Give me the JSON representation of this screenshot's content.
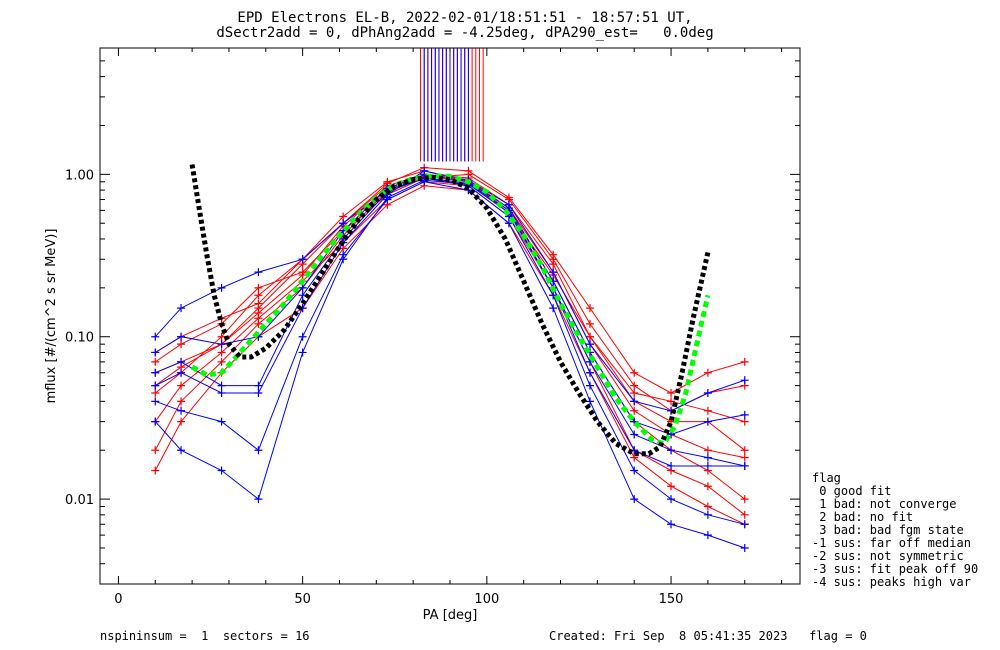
{
  "header": {
    "title_line1": "EPD Electrons EL-B, 2022-02-01/18:51:51 - 18:57:51 UT,",
    "title_line2": "dSectr2add = 0, dPhAng2add = -4.25deg, dPA290_est=   0.0deg"
  },
  "footer": {
    "left": "nspininsum =  1  sectors = 16",
    "right": "Created: Fri Sep  8 05:41:35 2023   flag = 0"
  },
  "legend": {
    "title": "flag",
    "items": [
      " 0 good fit",
      " 1 bad: not converge",
      " 2 bad: no fit",
      " 3 bad: bad fgm state",
      "-1 sus: far off median",
      "-2 sus: not symmetric",
      "-3 sus: fit peak off 90",
      "-4 sus: peaks high var"
    ]
  },
  "colors": {
    "red": "#ff0000",
    "blue": "#0000ff",
    "black": "#000000",
    "green": "#00ff00"
  },
  "chart_data": {
    "type": "line",
    "xlabel": "PA [deg]",
    "ylabel": "mflux [#/(cm^2 s sr MeV)]",
    "xlim": [
      -5,
      185
    ],
    "ylim": [
      0.003,
      6.0
    ],
    "yscale": "log",
    "x_ticks": [
      0,
      50,
      100,
      150
    ],
    "x_tick_labels": [
      "0",
      "50",
      "100",
      "150"
    ],
    "y_ticks": [
      0.01,
      0.1,
      1.0
    ],
    "y_tick_labels": [
      "0.01",
      "0.10",
      "1.00"
    ],
    "x_sample": [
      10,
      17,
      28,
      38,
      50,
      61,
      73,
      83,
      95,
      106,
      118,
      128,
      140,
      150,
      160,
      170
    ],
    "red_series": [
      [
        0.06,
        0.07,
        0.09,
        0.15,
        0.28,
        0.5,
        0.85,
        1.0,
        0.95,
        0.65,
        0.28,
        0.1,
        0.04,
        0.03,
        0.03,
        0.02
      ],
      [
        0.045,
        0.06,
        0.1,
        0.18,
        0.3,
        0.55,
        0.9,
        1.05,
        0.9,
        0.6,
        0.22,
        0.08,
        0.03,
        0.02,
        0.015,
        0.01
      ],
      [
        0.07,
        0.09,
        0.12,
        0.2,
        0.25,
        0.45,
        0.75,
        0.95,
        1.0,
        0.7,
        0.3,
        0.12,
        0.05,
        0.035,
        0.045,
        0.05
      ],
      [
        0.03,
        0.05,
        0.08,
        0.13,
        0.22,
        0.38,
        0.7,
        0.9,
        0.85,
        0.55,
        0.2,
        0.07,
        0.02,
        0.015,
        0.012,
        0.008
      ],
      [
        0.02,
        0.04,
        0.07,
        0.12,
        0.2,
        0.42,
        0.8,
        0.98,
        0.92,
        0.62,
        0.25,
        0.09,
        0.035,
        0.025,
        0.02,
        0.018
      ],
      [
        0.08,
        0.1,
        0.13,
        0.16,
        0.3,
        0.5,
        0.88,
        1.1,
        1.05,
        0.72,
        0.32,
        0.15,
        0.06,
        0.045,
        0.06,
        0.07
      ],
      [
        0.015,
        0.03,
        0.06,
        0.1,
        0.15,
        0.35,
        0.65,
        0.85,
        0.8,
        0.5,
        0.18,
        0.06,
        0.018,
        0.012,
        0.009,
        0.007
      ],
      [
        0.05,
        0.065,
        0.09,
        0.14,
        0.24,
        0.48,
        0.82,
        0.97,
        0.9,
        0.58,
        0.24,
        0.1,
        0.045,
        0.04,
        0.035,
        0.03
      ]
    ],
    "blue_series": [
      [
        0.1,
        0.15,
        0.2,
        0.25,
        0.3,
        0.5,
        0.8,
        0.95,
        0.88,
        0.6,
        0.2,
        0.06,
        0.02,
        0.016,
        0.016,
        0.016
      ],
      [
        0.08,
        0.1,
        0.09,
        0.1,
        0.2,
        0.45,
        0.82,
        1.0,
        0.9,
        0.62,
        0.22,
        0.08,
        0.03,
        0.025,
        0.03,
        0.033
      ],
      [
        0.06,
        0.07,
        0.05,
        0.05,
        0.18,
        0.4,
        0.78,
        0.95,
        0.85,
        0.55,
        0.18,
        0.05,
        0.015,
        0.01,
        0.008,
        0.007
      ],
      [
        0.05,
        0.06,
        0.045,
        0.045,
        0.15,
        0.38,
        0.75,
        1.05,
        0.92,
        0.65,
        0.25,
        0.09,
        0.04,
        0.035,
        0.045,
        0.054
      ],
      [
        0.04,
        0.035,
        0.03,
        0.02,
        0.1,
        0.32,
        0.7,
        0.9,
        0.8,
        0.5,
        0.15,
        0.04,
        0.01,
        0.007,
        0.006,
        0.005
      ],
      [
        0.03,
        0.02,
        0.015,
        0.01,
        0.08,
        0.3,
        0.72,
        0.92,
        0.87,
        0.58,
        0.2,
        0.07,
        0.025,
        0.02,
        0.018,
        0.016
      ]
    ],
    "red_spikes": {
      "x_from": 82,
      "x_to": 99,
      "count": 18,
      "y_from": 1.2,
      "y_to": 6.0
    },
    "blue_spikes": {
      "x_from": 83,
      "x_to": 95,
      "count": 13,
      "y_from": 1.2,
      "y_to": 6.0
    },
    "black_fit": {
      "x": [
        20,
        22,
        24,
        26,
        28,
        30,
        33,
        36,
        40,
        45,
        50,
        55,
        60,
        65,
        70,
        75,
        80,
        85,
        90,
        95,
        100,
        105,
        110,
        115,
        120,
        125,
        130,
        135,
        140,
        144,
        147,
        150,
        153,
        156,
        160
      ],
      "y": [
        1.15,
        0.6,
        0.32,
        0.18,
        0.12,
        0.09,
        0.075,
        0.075,
        0.085,
        0.11,
        0.16,
        0.24,
        0.36,
        0.52,
        0.7,
        0.85,
        0.93,
        0.96,
        0.93,
        0.82,
        0.62,
        0.4,
        0.22,
        0.12,
        0.07,
        0.045,
        0.03,
        0.022,
        0.019,
        0.019,
        0.021,
        0.03,
        0.06,
        0.13,
        0.33
      ]
    },
    "green_fit": {
      "x": [
        20,
        24,
        28,
        32,
        36,
        40,
        45,
        50,
        55,
        60,
        65,
        70,
        75,
        80,
        85,
        90,
        95,
        100,
        105,
        110,
        115,
        120,
        125,
        130,
        135,
        140,
        145,
        148,
        151,
        154,
        157,
        160
      ],
      "y": [
        0.065,
        0.058,
        0.06,
        0.075,
        0.095,
        0.12,
        0.16,
        0.22,
        0.31,
        0.42,
        0.56,
        0.72,
        0.86,
        0.94,
        0.98,
        0.97,
        0.9,
        0.78,
        0.6,
        0.42,
        0.27,
        0.16,
        0.1,
        0.065,
        0.042,
        0.03,
        0.023,
        0.022,
        0.028,
        0.045,
        0.09,
        0.18
      ]
    }
  }
}
